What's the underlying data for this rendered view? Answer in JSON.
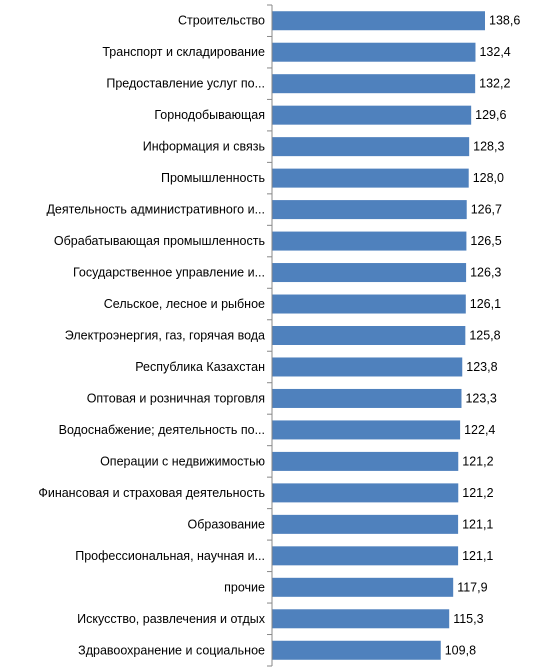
{
  "chart_data": {
    "type": "bar",
    "orientation": "horizontal",
    "categories": [
      "Строительство",
      "Транспорт и складирование",
      "Предоставление услуг по...",
      "Горнодобывающая",
      "Информация и связь",
      "Промышленность",
      "Деятельность административного и...",
      "Обрабатывающая промышленность",
      "Государственное управление и...",
      "Сельское, лесное и рыбное",
      "Электроэнергия, газ, горячая вода",
      "Республика Казахстан",
      "Оптовая и розничная торговля",
      "Водоснабжение; деятельность по...",
      "Операции с недвижимостью",
      "Финансовая и страховая деятельность",
      "Образование",
      "Профессиональная, научная и...",
      "прочие",
      "Искусство, развлечения и отдых",
      "Здравоохранение и социальное"
    ],
    "values": [
      138.6,
      132.4,
      132.2,
      129.6,
      128.3,
      128.0,
      126.7,
      126.5,
      126.3,
      126.1,
      125.8,
      123.8,
      123.3,
      122.4,
      121.2,
      121.2,
      121.1,
      121.1,
      117.9,
      115.3,
      109.8
    ],
    "value_labels": [
      "138,6",
      "132,4",
      "132,2",
      "129,6",
      "128,3",
      "128,0",
      "126,7",
      "126,5",
      "126,3",
      "126,1",
      "125,8",
      "123,8",
      "123,3",
      "122,4",
      "121,2",
      "121,2",
      "121,1",
      "121,1",
      "117,9",
      "115,3",
      "109,8"
    ],
    "title": "",
    "xlabel": "",
    "ylabel": "",
    "xlim": [
      0,
      138.6
    ],
    "grid": false,
    "legend": "none",
    "bar_color": "#4f81bd",
    "axis_color": "#888888"
  }
}
